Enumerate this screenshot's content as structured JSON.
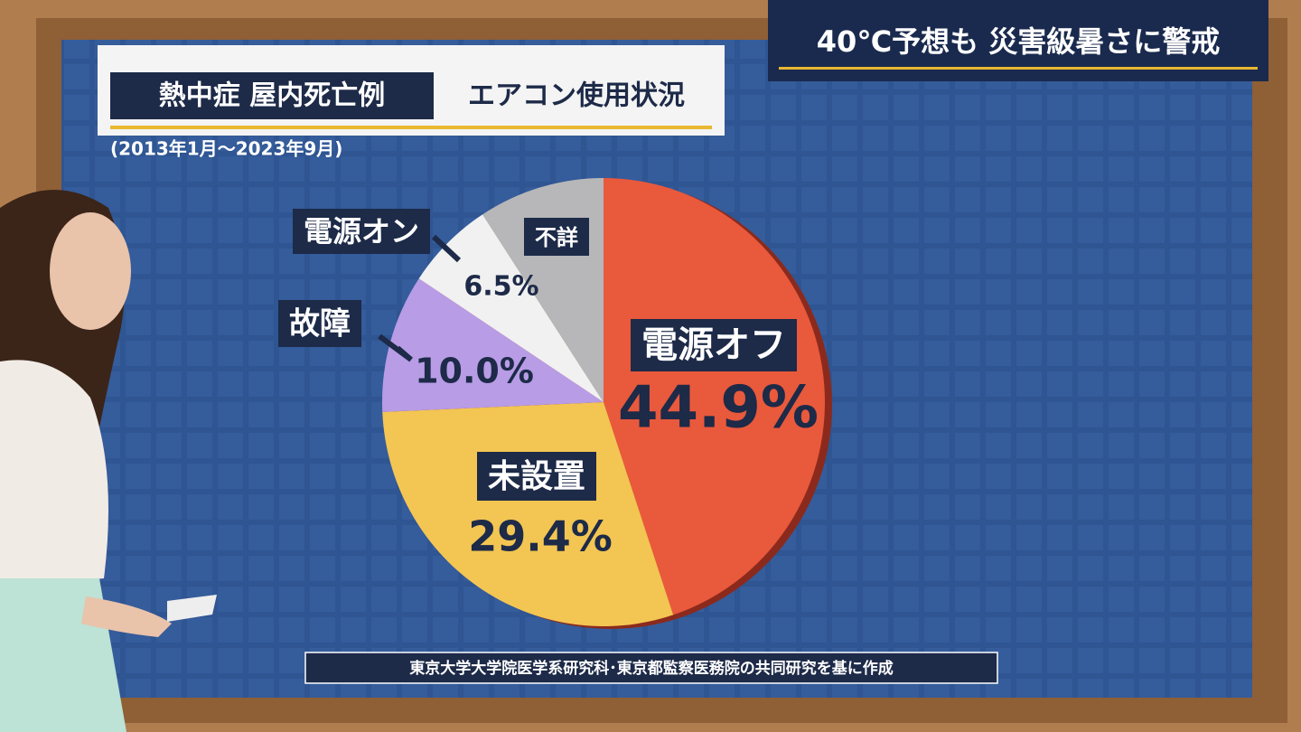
{
  "header": {
    "banner": "40℃予想も 災害級暑さに警戒"
  },
  "chart_data": {
    "type": "pie",
    "title": "熱中症 屋内死亡例",
    "subtitle": "エアコン使用状況",
    "period": "(2013年1月～2023年9月)",
    "categories": [
      "電源オフ",
      "未設置",
      "故障",
      "電源オン",
      "不詳"
    ],
    "values": [
      44.9,
      29.4,
      10.0,
      6.5,
      9.2
    ],
    "value_labels": [
      "44.9%",
      "29.4%",
      "10.0%",
      "6.5%",
      null
    ],
    "colors": [
      "#e9593c",
      "#f3c552",
      "#b89ce6",
      "#f1f1f1",
      "#b7b7b9"
    ],
    "source": "東京大学大学院医学系研究科･東京都監察医務院の共同研究を基に作成"
  }
}
